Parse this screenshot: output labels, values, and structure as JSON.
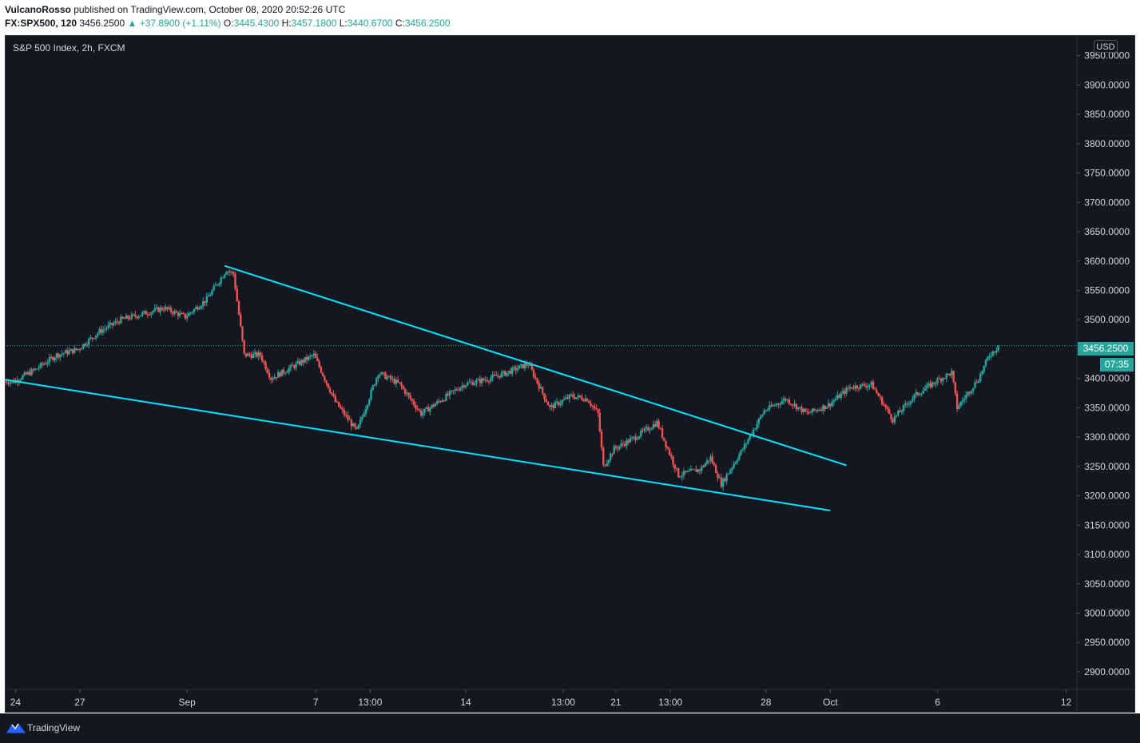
{
  "header": {
    "author": "VulcanoRosso",
    "published_text": " published on TradingView.com, October 08, 2020 20:52:26 UTC",
    "symbol": "FX:SPX500, 120",
    "last": "3456.2500",
    "change": "▲ +37.8900 (+1.11%)",
    "o_label": "O:",
    "o_value": "3445.4300",
    "h_label": "H:",
    "h_value": "3457.1800",
    "l_label": "L:",
    "l_value": "3440.6700",
    "c_label": "C:",
    "c_value": "3456.2500"
  },
  "pane_title": "S&P 500 Index, 2h, FXCM",
  "currency": "USD",
  "price_tag": "3456.2500",
  "time_tag": "07:35",
  "footer": {
    "brand": "TradingView"
  },
  "colors": {
    "background": "#131722",
    "up": "#26a69a",
    "down": "#ef5350",
    "trendline": "#00e5ff",
    "axis_text": "#d1d4dc",
    "grid": "#2a2e39"
  },
  "chart_data": {
    "type": "candlestick",
    "title": "S&P 500 Index, 2h, FXCM",
    "y_axis": {
      "ticks": [
        "3950.0000",
        "3900.0000",
        "3850.0000",
        "3800.0000",
        "3750.0000",
        "3700.0000",
        "3650.0000",
        "3600.0000",
        "3550.0000",
        "3500.0000",
        "3450.0000",
        "3400.0000",
        "3350.0000",
        "3300.0000",
        "3250.0000",
        "3200.0000",
        "3150.0000",
        "3100.0000",
        "3050.0000",
        "3000.0000",
        "2950.0000",
        "2900.0000"
      ],
      "range": [
        2870,
        3985
      ],
      "currency": "USD"
    },
    "x_axis": {
      "ticks": [
        "24",
        "27",
        "Sep",
        "7",
        "13:00",
        "14",
        "13:00",
        "21",
        "13:00",
        "28",
        "Oct",
        "6",
        "12"
      ],
      "range_dates": [
        "2020-08-23T12:00",
        "2020-10-12T12:00"
      ]
    },
    "last_price": 3456.25,
    "price_anchors": [
      [
        "2020-08-24T00:00",
        3395
      ],
      [
        "2020-08-25T00:00",
        3415
      ],
      [
        "2020-08-26T00:00",
        3440
      ],
      [
        "2020-08-27T00:00",
        3450
      ],
      [
        "2020-08-28T00:00",
        3480
      ],
      [
        "2020-08-29T00:00",
        3500
      ],
      [
        "2020-08-31T00:00",
        3520
      ],
      [
        "2020-09-01T00:00",
        3505
      ],
      [
        "2020-09-02T00:00",
        3535
      ],
      [
        "2020-09-02T22:00",
        3585
      ],
      [
        "2020-09-03T06:00",
        3578
      ],
      [
        "2020-09-03T18:00",
        3440
      ],
      [
        "2020-09-04T12:00",
        3440
      ],
      [
        "2020-09-05T00:00",
        3400
      ],
      [
        "2020-09-06T00:00",
        3420
      ],
      [
        "2020-09-07T00:00",
        3440
      ],
      [
        "2020-09-08T00:00",
        3360
      ],
      [
        "2020-09-09T00:00",
        3310
      ],
      [
        "2020-09-09T12:00",
        3360
      ],
      [
        "2020-09-10T00:00",
        3410
      ],
      [
        "2020-09-11T00:00",
        3390
      ],
      [
        "2020-09-12T00:00",
        3340
      ],
      [
        "2020-09-13T00:00",
        3365
      ],
      [
        "2020-09-14T00:00",
        3390
      ],
      [
        "2020-09-15T00:00",
        3398
      ],
      [
        "2020-09-16T00:00",
        3410
      ],
      [
        "2020-09-17T00:00",
        3425
      ],
      [
        "2020-09-18T00:00",
        3350
      ],
      [
        "2020-09-19T00:00",
        3370
      ],
      [
        "2020-09-19T18:00",
        3365
      ],
      [
        "2020-09-20T06:00",
        3340
      ],
      [
        "2020-09-20T12:00",
        3250
      ],
      [
        "2020-09-21T00:00",
        3280
      ],
      [
        "2020-09-22T00:00",
        3300
      ],
      [
        "2020-09-23T00:00",
        3325
      ],
      [
        "2020-09-24T00:00",
        3235
      ],
      [
        "2020-09-25T00:00",
        3245
      ],
      [
        "2020-09-25T12:00",
        3265
      ],
      [
        "2020-09-26T00:00",
        3220
      ],
      [
        "2020-09-27T00:00",
        3280
      ],
      [
        "2020-09-28T00:00",
        3345
      ],
      [
        "2020-09-29T00:00",
        3365
      ],
      [
        "2020-09-30T00:00",
        3340
      ],
      [
        "2020-10-01T00:00",
        3355
      ],
      [
        "2020-10-02T00:00",
        3385
      ],
      [
        "2020-10-03T00:00",
        3390
      ],
      [
        "2020-10-04T00:00",
        3330
      ],
      [
        "2020-10-05T00:00",
        3370
      ],
      [
        "2020-10-06T00:00",
        3395
      ],
      [
        "2020-10-06T18:00",
        3410
      ],
      [
        "2020-10-07T00:00",
        3350
      ],
      [
        "2020-10-08T00:00",
        3400
      ],
      [
        "2020-10-08T12:00",
        3440
      ],
      [
        "2020-10-09T00:00",
        3456
      ]
    ],
    "trendlines": [
      {
        "name": "upper",
        "from": [
          "2020-09-02T18:00",
          3592
        ],
        "to": [
          "2020-10-01T18:00",
          3252
        ]
      },
      {
        "name": "lower",
        "from": [
          "2020-08-23T12:00",
          3398
        ],
        "to": [
          "2020-10-01T00:00",
          3175
        ]
      }
    ]
  }
}
